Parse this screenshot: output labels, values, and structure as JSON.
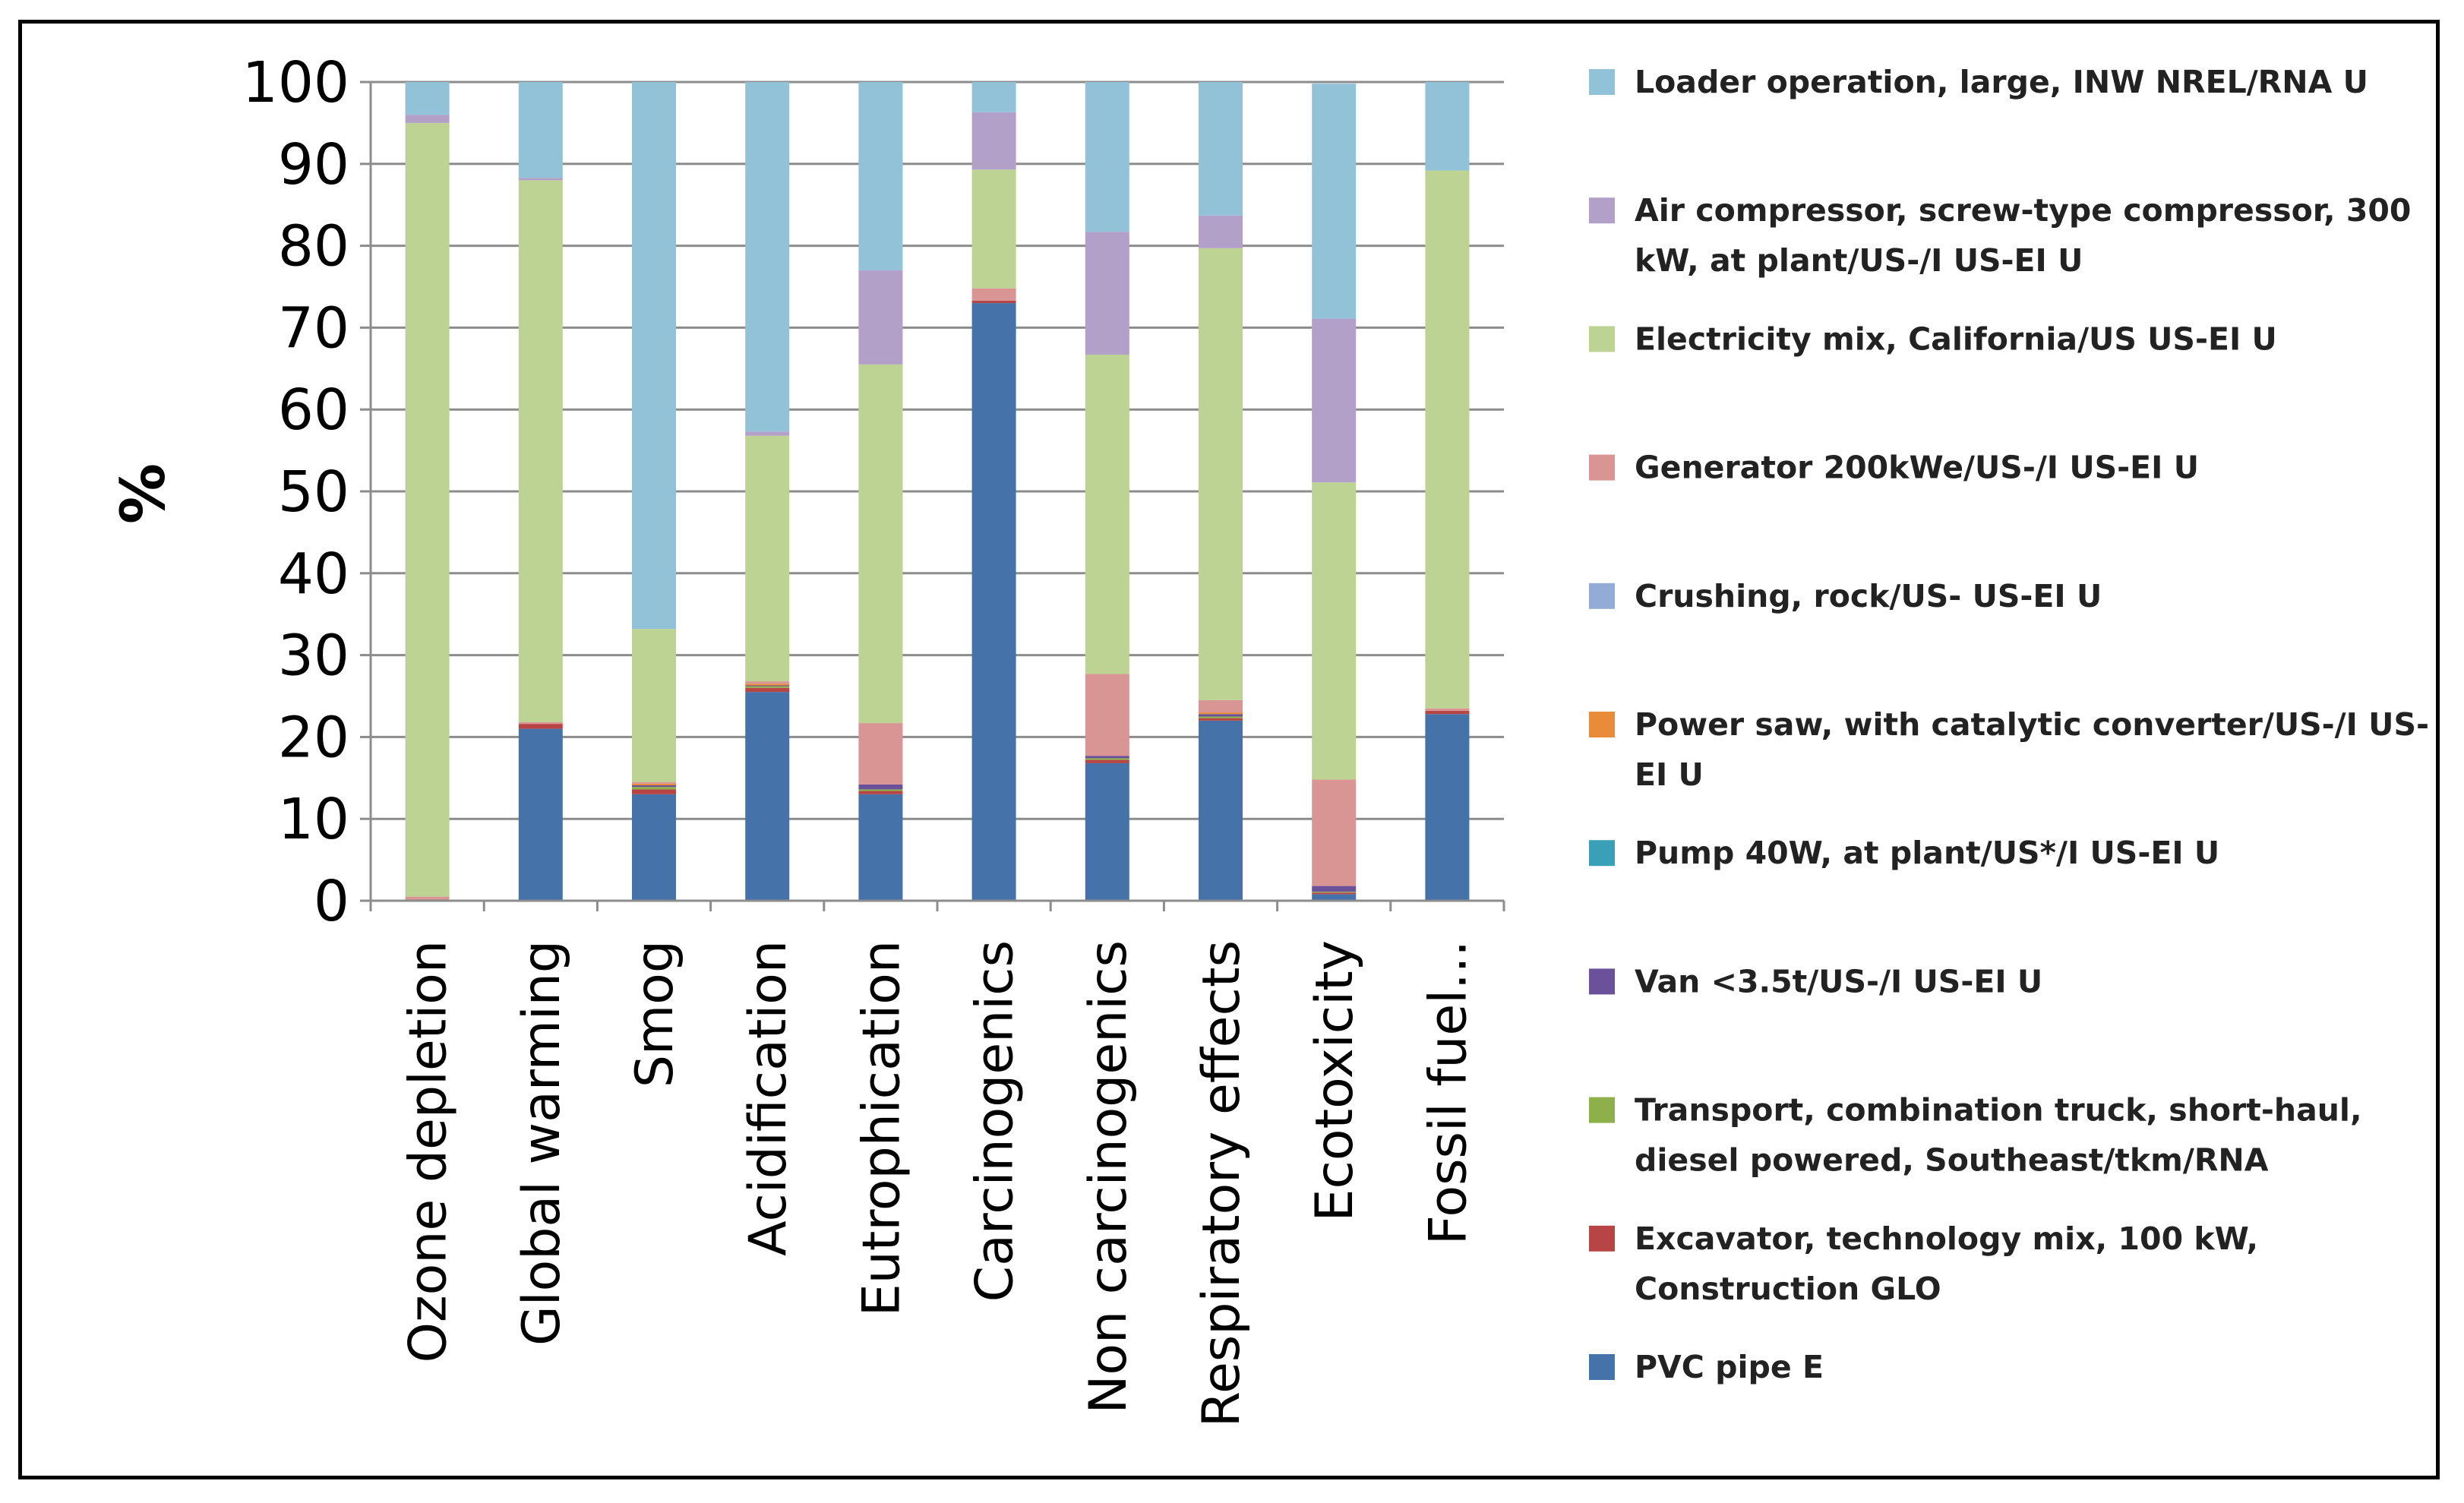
{
  "chart_data": {
    "type": "bar",
    "stacked": true,
    "title": "",
    "xlabel": "",
    "ylabel": "%",
    "ylim": [
      0,
      100
    ],
    "yticks": [
      0,
      10,
      20,
      30,
      40,
      50,
      60,
      70,
      80,
      90,
      100
    ],
    "grid": true,
    "legend_position": "right",
    "categories": [
      "Ozone depletion",
      "Global warming",
      "Smog",
      "Acidification",
      "Eutrophication",
      "Carcinogenics",
      "Non carcinogenics",
      "Respiratory effects",
      "Ecotoxicity",
      "Fossil fuel..."
    ],
    "series": [
      {
        "name": "PVC pipe E",
        "color": "#4672aa",
        "values": [
          0,
          21,
          13,
          25.5,
          13,
          73,
          16.8,
          22,
          0.8,
          22.8
        ]
      },
      {
        "name": "Excavator, technology mix, 100 kW, Construction GLO",
        "color": "#b84545",
        "values": [
          0,
          0.6,
          0.6,
          0.5,
          0.4,
          0.3,
          0.4,
          0.3,
          0.2,
          0.4
        ]
      },
      {
        "name": "Transport, combination truck, short-haul, diesel powered, Southeast/tkm/RNA",
        "color": "#8db04a",
        "values": [
          0,
          0,
          0.3,
          0.2,
          0.2,
          0,
          0.2,
          0.2,
          0.1,
          0
        ]
      },
      {
        "name": "Van <3.5t/US-/I US-EI U",
        "color": "#6b519a",
        "values": [
          0,
          0,
          0.2,
          0.1,
          0.6,
          0,
          0.3,
          0.3,
          0.7,
          0
        ]
      },
      {
        "name": "Pump 40W, at plant/US*/I US-EI U",
        "color": "#3aa0b8",
        "values": [
          0,
          0,
          0,
          0,
          0,
          0,
          0,
          0,
          0,
          0
        ]
      },
      {
        "name": "Power saw, with catalytic converter/US-/I US-EI U",
        "color": "#e88c3a",
        "values": [
          0,
          0,
          0.2,
          0.2,
          0,
          0,
          0,
          0.2,
          0,
          0
        ]
      },
      {
        "name": "Crushing, rock/US- US-EI U",
        "color": "#93acd6",
        "values": [
          0,
          0,
          0,
          0,
          0,
          0,
          0,
          0,
          0,
          0
        ]
      },
      {
        "name": "Generator 200kWe/US-/I US-EI U",
        "color": "#d99594",
        "values": [
          0.5,
          0.2,
          0.2,
          0.3,
          7.5,
          1.5,
          10,
          1.5,
          13,
          0.3
        ]
      },
      {
        "name": "Electricity mix, California/US US-EI U",
        "color": "#bcd393",
        "values": [
          94.5,
          66.2,
          18.7,
          30,
          43.8,
          14.5,
          39,
          55.2,
          36.3,
          65.7
        ]
      },
      {
        "name": "Air compressor, screw-type compressor, 300 kW, at plant/US-/I US-EI U",
        "color": "#b2a0c8",
        "values": [
          1,
          0.3,
          0,
          0.5,
          11.5,
          7,
          15,
          4,
          20,
          0
        ]
      },
      {
        "name": "Loader operation, large, INW NREL/RNA U",
        "color": "#92c2d8",
        "values": [
          4,
          11.7,
          66.8,
          42.7,
          23,
          3.7,
          18.3,
          16.3,
          28.7,
          10.8
        ]
      }
    ]
  },
  "legend": [
    {
      "series": 10,
      "lines": [
        "Loader operation, large, INW NREL/RNA U"
      ]
    },
    {
      "series": 9,
      "lines": [
        "Air compressor, screw-type compressor, 300",
        "kW, at plant/US-/I US-EI U"
      ]
    },
    {
      "series": 8,
      "lines": [
        "Electricity mix, California/US US-EI U"
      ]
    },
    {
      "series": 7,
      "lines": [
        "Generator 200kWe/US-/I US-EI U"
      ]
    },
    {
      "series": 6,
      "lines": [
        "Crushing, rock/US- US-EI U"
      ]
    },
    {
      "series": 5,
      "lines": [
        "Power saw, with catalytic converter/US-/I US-",
        "EI U"
      ]
    },
    {
      "series": 4,
      "lines": [
        "Pump 40W, at plant/US*/I US-EI U"
      ]
    },
    {
      "series": 3,
      "lines": [
        "Van <3.5t/US-/I US-EI U"
      ]
    },
    {
      "series": 2,
      "lines": [
        "Transport, combination truck, short-haul,",
        "diesel powered, Southeast/tkm/RNA"
      ]
    },
    {
      "series": 1,
      "lines": [
        "Excavator, technology mix, 100 kW,",
        "Construction GLO"
      ]
    },
    {
      "series": 0,
      "lines": [
        "PVC pipe E"
      ]
    }
  ]
}
